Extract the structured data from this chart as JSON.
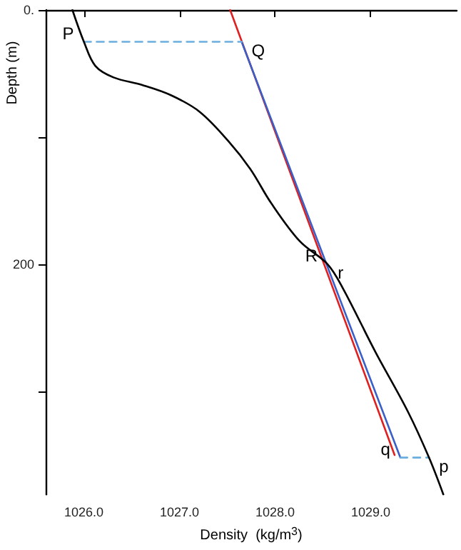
{
  "chart_data": {
    "type": "line",
    "xlabel": "Density  (kg/m$^{3}$)",
    "ylabel": "Depth (m)",
    "xlim": [
      1025.6,
      1029.9
    ],
    "ylim": [
      381,
      0
    ],
    "xticks": [
      {
        "value": 1026,
        "label": "1026.0"
      },
      {
        "value": 1027,
        "label": "1027.0"
      },
      {
        "value": 1028,
        "label": "1028.0"
      },
      {
        "value": 1029,
        "label": "1029.0"
      }
    ],
    "yticks": [
      {
        "value": 0,
        "label": "0."
      },
      {
        "value": 100,
        "label": null
      },
      200,
      {
        "value": 300,
        "label": null
      }
    ],
    "grid": false,
    "marker": "none",
    "series": [
      {
        "color": "#e02020",
        "line_style": "solid",
        "x": [
          1027.53,
          1029.25
        ],
        "values": [
          0,
          350
        ]
      },
      {
        "color": "#3a5fc8",
        "line_style": "solid",
        "x": [
          1027.65,
          1029.31
        ],
        "values": [
          25,
          352
        ]
      },
      {
        "color": "#6aaee0",
        "line_style": "dashed",
        "x": [
          1026.0,
          1027.65
        ],
        "values": [
          25,
          25
        ]
      },
      {
        "color": "#6aaee0",
        "line_style": "dashed",
        "x": [
          1029.31,
          1029.61
        ],
        "values": [
          352,
          352
        ]
      },
      {
        "color": "#000000",
        "line_style": "solid",
        "x": [
          1025.88,
          1026.0,
          1026.12,
          1026.31,
          1026.61,
          1026.91,
          1027.21,
          1027.51,
          1027.74,
          1027.96,
          1028.26,
          1028.55,
          1028.71,
          1029.05,
          1029.39,
          1029.61,
          1029.76
        ],
        "values": [
          0,
          25,
          44,
          53,
          59,
          67,
          80,
          103,
          125,
          152,
          182,
          200,
          219,
          269,
          316,
          352,
          381
        ]
      }
    ],
    "annotations": [
      {
        "text": "P",
        "x": 1026.0,
        "y": 25
      },
      {
        "text": "Q",
        "x": 1027.65,
        "y": 25
      },
      {
        "text": "R",
        "x": 1028.55,
        "y": 200
      },
      {
        "text": "r",
        "x": 1028.55,
        "y": 200
      },
      {
        "text": "q",
        "x": 1029.31,
        "y": 352
      },
      {
        "text": "p",
        "x": 1029.61,
        "y": 352
      }
    ]
  }
}
